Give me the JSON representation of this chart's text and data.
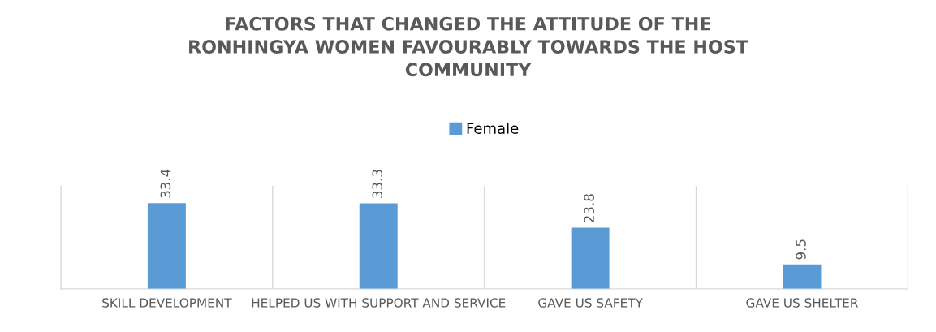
{
  "chart_data": {
    "type": "bar",
    "title": "FACTORS THAT CHANGED THE ATTITUDE OF THE\nRONHINGYA WOMEN FAVOURABLY TOWARDS THE HOST\nCOMMUNITY",
    "categories": [
      "SKILL DEVELOPMENT",
      "HELPED US WITH SUPPORT AND SERVICE",
      "GAVE US SAFETY",
      "GAVE US SHELTER"
    ],
    "series": [
      {
        "name": "Female",
        "color": "#5b9bd5",
        "values": [
          33.4,
          33.3,
          23.8,
          9.5
        ]
      }
    ],
    "data_labels": true,
    "legend": "top",
    "grid": "x",
    "tick_labels": "x"
  }
}
